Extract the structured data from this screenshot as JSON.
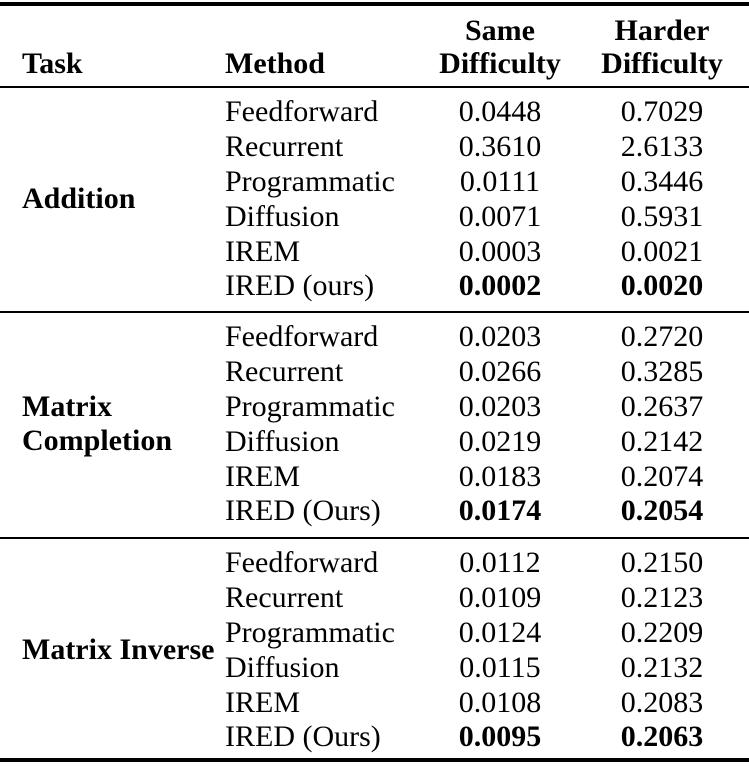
{
  "header": {
    "task": "Task",
    "method": "Method",
    "same_line1": "Same",
    "same_line2": "Difficulty",
    "harder_line1": "Harder",
    "harder_line2": "Difficulty"
  },
  "sections": [
    {
      "task": "Addition",
      "rows": [
        {
          "method": "Feedforward",
          "same": "0.0448",
          "harder": "0.7029"
        },
        {
          "method": "Recurrent",
          "same": "0.3610",
          "harder": "2.6133"
        },
        {
          "method": "Programmatic",
          "same": "0.0111",
          "harder": "0.3446"
        },
        {
          "method": "Diffusion",
          "same": "0.0071",
          "harder": "0.5931"
        },
        {
          "method": "IREM",
          "same": "0.0003",
          "harder": "0.0021"
        },
        {
          "method": "IRED (ours)",
          "same": "0.0002",
          "harder": "0.0020"
        }
      ]
    },
    {
      "task": "Matrix Completion",
      "rows": [
        {
          "method": "Feedforward",
          "same": "0.0203",
          "harder": "0.2720"
        },
        {
          "method": "Recurrent",
          "same": "0.0266",
          "harder": "0.3285"
        },
        {
          "method": "Programmatic",
          "same": "0.0203",
          "harder": "0.2637"
        },
        {
          "method": "Diffusion",
          "same": "0.0219",
          "harder": "0.2142"
        },
        {
          "method": "IREM",
          "same": "0.0183",
          "harder": "0.2074"
        },
        {
          "method": "IRED (Ours)",
          "same": "0.0174",
          "harder": "0.2054"
        }
      ]
    },
    {
      "task": "Matrix Inverse",
      "rows": [
        {
          "method": "Feedforward",
          "same": "0.0112",
          "harder": "0.2150"
        },
        {
          "method": "Recurrent",
          "same": "0.0109",
          "harder": "0.2123"
        },
        {
          "method": "Programmatic",
          "same": "0.0124",
          "harder": "0.2209"
        },
        {
          "method": "Diffusion",
          "same": "0.0115",
          "harder": "0.2132"
        },
        {
          "method": "IREM",
          "same": "0.0108",
          "harder": "0.2083"
        },
        {
          "method": "IRED (Ours)",
          "same": "0.0095",
          "harder": "0.2063"
        }
      ]
    }
  ]
}
